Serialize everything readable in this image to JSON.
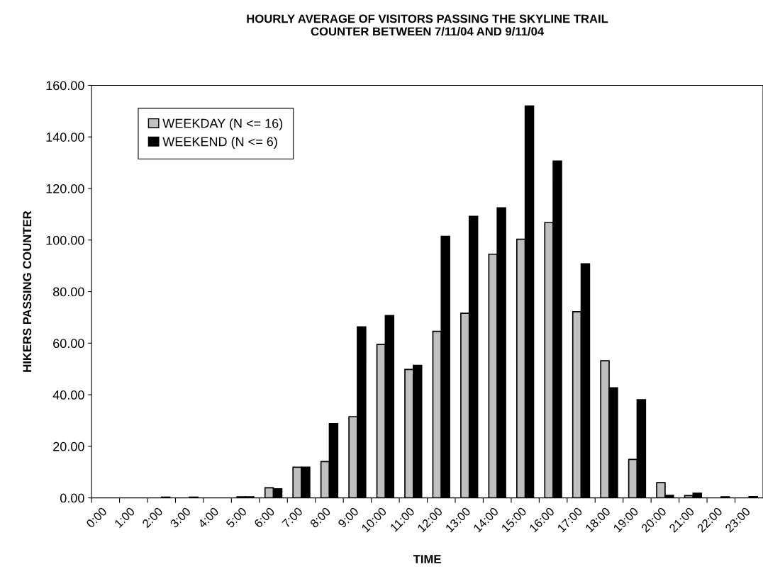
{
  "chart_data": {
    "type": "bar",
    "title": "HOURLY AVERAGE OF VISITORS PASSING THE SKYLINE TRAIL\nCOUNTER BETWEEN 7/11/04 AND 9/11/04",
    "xlabel": "TIME",
    "ylabel": "HIKERS PASSING COUNTER",
    "categories": [
      "0:00",
      "1:00",
      "2:00",
      "3:00",
      "4:00",
      "5:00",
      "6:00",
      "7:00",
      "8:00",
      "9:00",
      "10:00",
      "11:00",
      "12:00",
      "13:00",
      "14:00",
      "15:00",
      "16:00",
      "17:00",
      "18:00",
      "19:00",
      "20:00",
      "21:00",
      "22:00",
      "23:00"
    ],
    "series": [
      {
        "name": "WEEKDAY (N <= 16)",
        "color": "#c0c0c0",
        "values": [
          0,
          0,
          null,
          0,
          null,
          0.4,
          3.9,
          11.9,
          14.1,
          31.5,
          59.5,
          49.8,
          64.6,
          71.6,
          94.5,
          100.3,
          106.8,
          72.2,
          53.2,
          14.9,
          5.9,
          0.9,
          null,
          null
        ]
      },
      {
        "name": "WEEKEND (N <= 6)",
        "color": "#000000",
        "values": [
          0,
          0,
          0.3,
          0.3,
          0,
          0.4,
          3.5,
          11.9,
          28.8,
          66.3,
          70.7,
          51.4,
          101.4,
          109.2,
          112.5,
          152,
          130.6,
          90.8,
          42.7,
          38.1,
          1.0,
          1.8,
          0.4,
          0.5
        ]
      }
    ],
    "ylim": [
      0,
      160
    ],
    "yticks": [
      {
        "value": 0,
        "label": "0.00"
      },
      {
        "value": 20,
        "label": "20.00"
      },
      {
        "value": 40,
        "label": "40.00"
      },
      {
        "value": 60,
        "label": "60.00"
      },
      {
        "value": 80,
        "label": "80.00"
      },
      {
        "value": 100,
        "label": "100.00"
      },
      {
        "value": 120,
        "label": "120.00"
      },
      {
        "value": 140,
        "label": "140.00"
      },
      {
        "value": 160,
        "label": "160.00"
      }
    ],
    "grid": false,
    "legend": "top left"
  }
}
